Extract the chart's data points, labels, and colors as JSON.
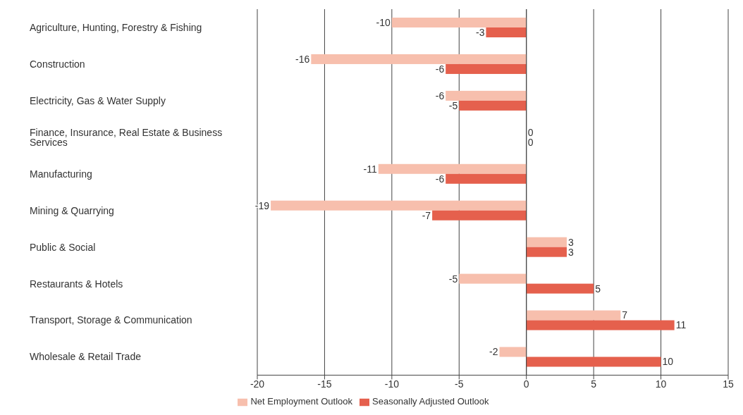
{
  "chart_data": {
    "type": "bar",
    "orientation": "horizontal",
    "categories": [
      "Agriculture, Hunting, Forestry & Fishing",
      "Construction",
      "Electricity, Gas & Water Supply",
      "Finance, Insurance, Real Estate & Business Services",
      "Manufacturing",
      "Mining & Quarrying",
      "Public & Social",
      "Restaurants & Hotels",
      "Transport, Storage & Communication",
      "Wholesale & Retail Trade"
    ],
    "series": [
      {
        "name": "Net Employment Outlook",
        "color": "#f7bfad",
        "values": [
          -10,
          -16,
          -6,
          0,
          -11,
          -19,
          3,
          -5,
          7,
          -2
        ]
      },
      {
        "name": "Seasonally Adjusted Outlook",
        "color": "#e5604d",
        "values": [
          -3,
          -6,
          -5,
          0,
          -6,
          -7,
          3,
          5,
          11,
          10
        ]
      }
    ],
    "xlim": [
      -20,
      15
    ],
    "xticks": [
      -20,
      -15,
      -10,
      -5,
      0,
      5,
      10,
      15
    ],
    "grid": "x",
    "legend": "bottom",
    "data_labels": true
  }
}
